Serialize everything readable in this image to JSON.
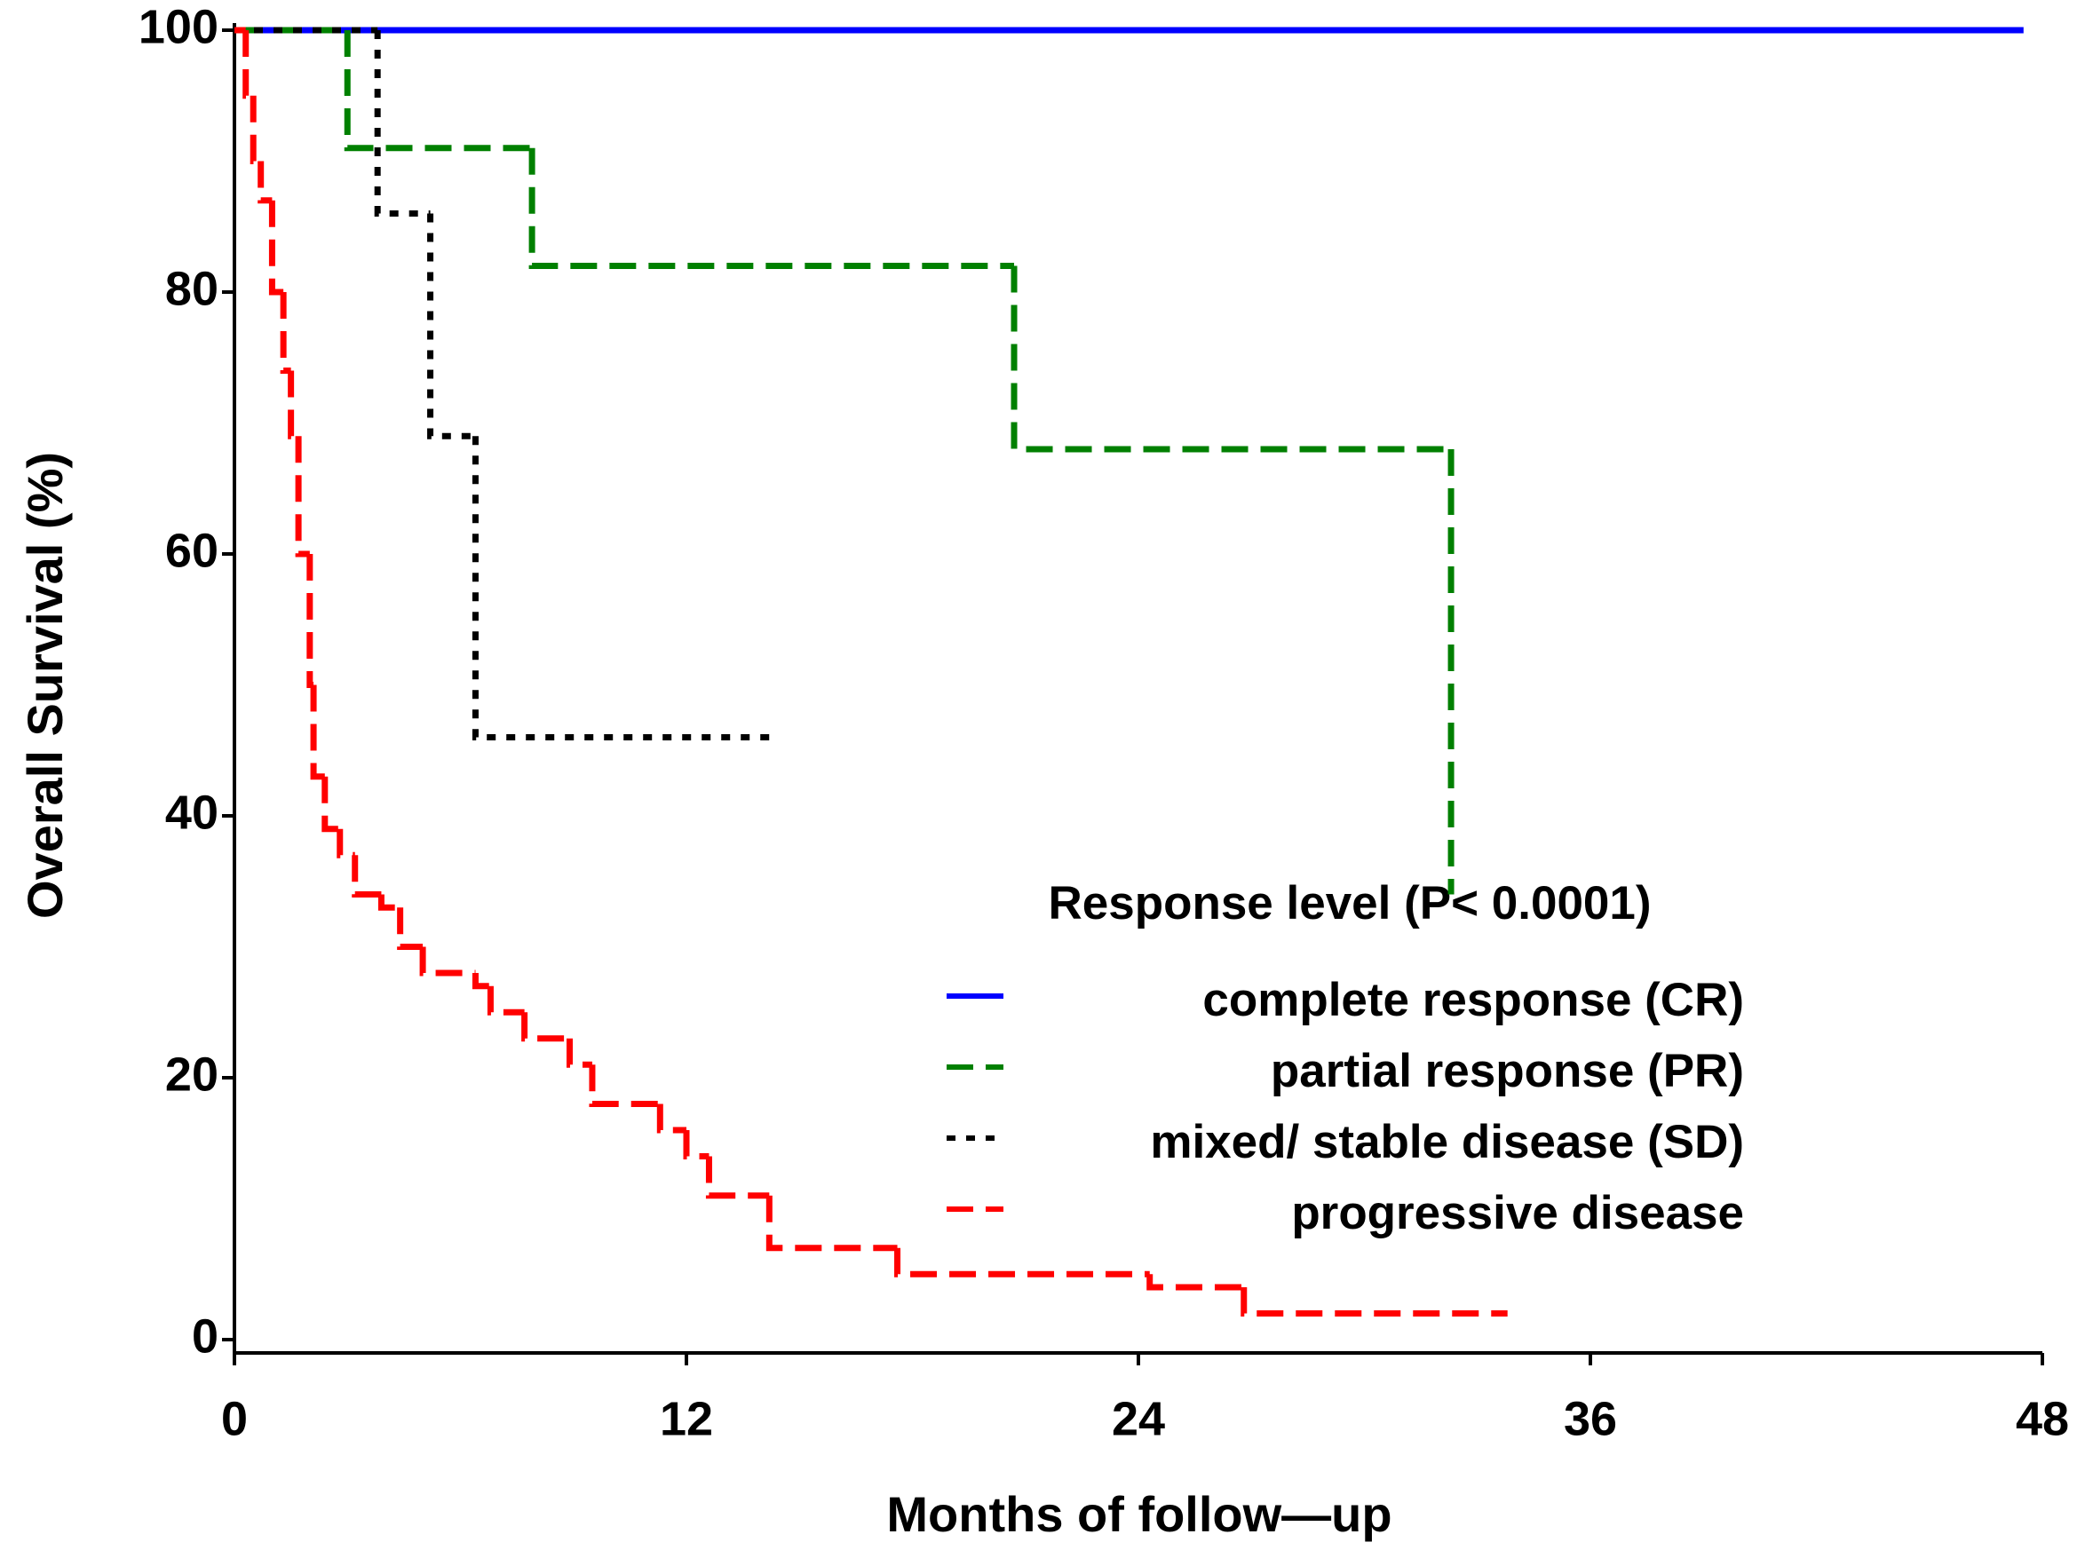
{
  "chart_data": {
    "type": "step",
    "x_label": "Months of follow—up",
    "y_label": "Overall Survival (%)",
    "legend_title": "Response level (P< 0.0001)",
    "xlim": [
      0,
      48
    ],
    "xticks": [
      0,
      12,
      24,
      36,
      48
    ],
    "ylim": [
      0,
      100
    ],
    "yticks": [
      0,
      20,
      40,
      60,
      80,
      100
    ],
    "series": [
      {
        "name": "complete response (CR)",
        "color": "#0000ff",
        "line_style": "solid",
        "x": [
          0,
          47.5
        ],
        "values": [
          100,
          100
        ]
      },
      {
        "name": "partial response (PR)",
        "color": "#008000",
        "line_style": "dashed",
        "x": [
          0,
          3.0,
          7.9,
          20.7,
          32.3
        ],
        "values": [
          100,
          91,
          82,
          68,
          34
        ]
      },
      {
        "name": "mixed/ stable disease (SD)",
        "color": "#000000",
        "line_style": "dotted",
        "x": [
          0,
          3.8,
          5.2,
          6.4,
          14.2
        ],
        "values": [
          100,
          86,
          69,
          46,
          46
        ]
      },
      {
        "name": "progressive disease",
        "color": "#ff0000",
        "line_style": "dashed",
        "x": [
          0,
          0.3,
          0.5,
          0.7,
          1.0,
          1.3,
          1.5,
          1.7,
          2.0,
          2.1,
          2.4,
          2.8,
          3.2,
          3.9,
          4.4,
          5.0,
          6.4,
          6.8,
          7.7,
          8.9,
          9.5,
          11.3,
          12.0,
          12.6,
          14.2,
          17.6,
          24.3,
          26.8,
          33.8
        ],
        "values": [
          100,
          95,
          90,
          87,
          80,
          74,
          69,
          60,
          50,
          43,
          39,
          37,
          34,
          33,
          30,
          28,
          27,
          25,
          23,
          21,
          18,
          16,
          14,
          11,
          7,
          5,
          4,
          2,
          2
        ]
      }
    ]
  }
}
